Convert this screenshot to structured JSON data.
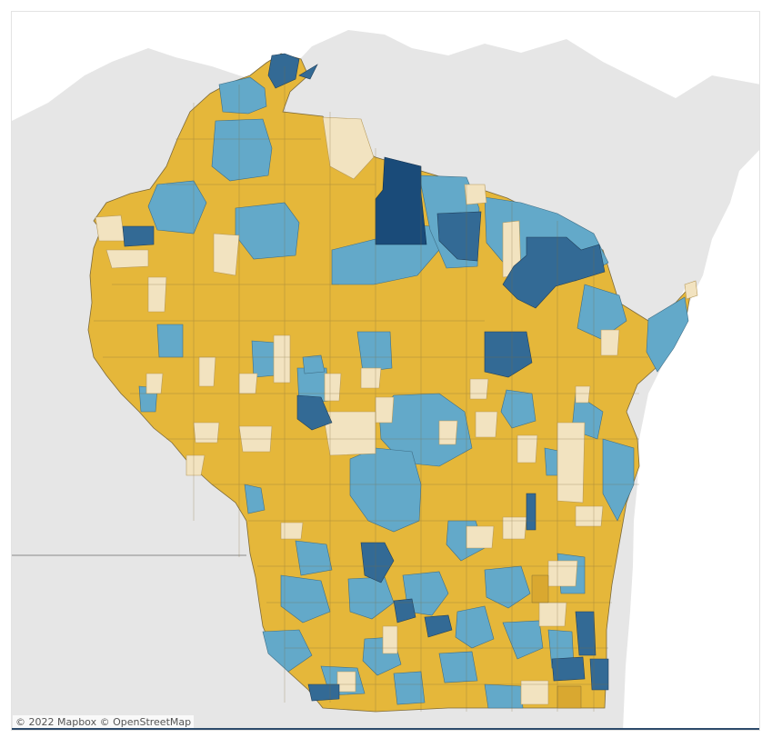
{
  "map": {
    "attribution": "© 2022 Mapbox  © OpenStreetMap",
    "colors": {
      "water": "#ffffff",
      "land_base": "#e6e6e6",
      "land_light": "#efefef",
      "state_line": "#8a8a8a",
      "district_border": "#7d6a3a",
      "tier_1": "#f2e3c0",
      "tier_2": "#e5b73a",
      "tier_3": "#63a9c9",
      "tier_4": "#336a95",
      "tier_5": "#1a4b79"
    }
  }
}
